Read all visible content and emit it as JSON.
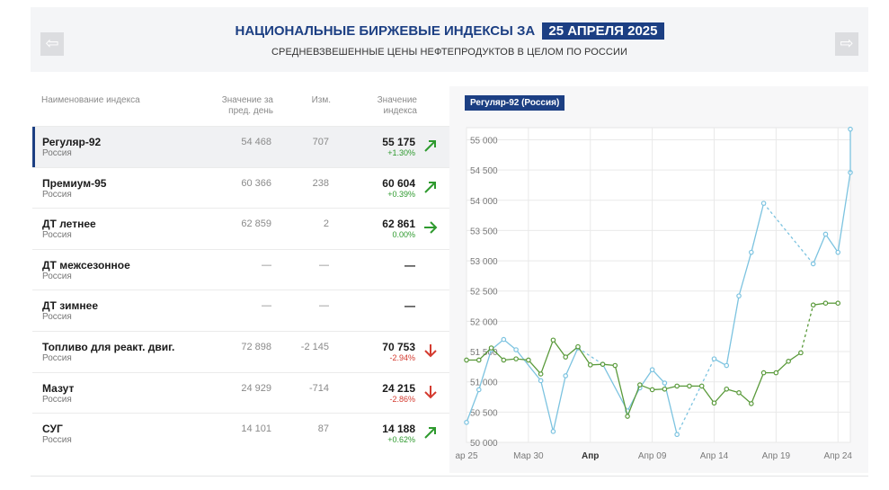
{
  "header": {
    "title": "НАЦИОНАЛЬНЫЕ БИРЖЕВЫЕ ИНДЕКСЫ ЗА",
    "date": "25 АПРЕЛЯ 2025",
    "subtitle": "СРЕДНЕВЗВЕШЕННЫЕ ЦЕНЫ НЕФТЕПРОДУКТОВ В ЦЕЛОМ ПО РОССИИ",
    "prev_icon": "arrow-left-icon",
    "next_icon": "arrow-right-icon",
    "prev_glyph": "⇦",
    "next_glyph": "⇨"
  },
  "table": {
    "headers": {
      "name": "Наименование индекса",
      "prev": "Значение за пред. день",
      "change": "Изм.",
      "value": "Значение индекса"
    },
    "rows": [
      {
        "name": "Регуляр-92",
        "region": "Россия",
        "prev": "54 468",
        "change": "707",
        "value": "55 175",
        "pct": "+1.30%",
        "trend": "up"
      },
      {
        "name": "Премиум-95",
        "region": "Россия",
        "prev": "60 366",
        "change": "238",
        "value": "60 604",
        "pct": "+0.39%",
        "trend": "up"
      },
      {
        "name": "ДТ летнее",
        "region": "Россия",
        "prev": "62 859",
        "change": "2",
        "value": "62 861",
        "pct": "0.00%",
        "trend": "flat"
      },
      {
        "name": "ДТ межсезонное",
        "region": "Россия",
        "prev": "—",
        "change": "—",
        "value": "—",
        "pct": "",
        "trend": "none"
      },
      {
        "name": "ДТ зимнее",
        "region": "Россия",
        "prev": "—",
        "change": "—",
        "value": "—",
        "pct": "",
        "trend": "none"
      },
      {
        "name": "Топливо для реакт. двиг.",
        "region": "Россия",
        "prev": "72 898",
        "change": "-2 145",
        "value": "70 753",
        "pct": "-2.94%",
        "trend": "down"
      },
      {
        "name": "Мазут",
        "region": "Россия",
        "prev": "24 929",
        "change": "-714",
        "value": "24 215",
        "pct": "-2.86%",
        "trend": "down"
      },
      {
        "name": "СУГ",
        "region": "Россия",
        "prev": "14 101",
        "change": "87",
        "value": "14 188",
        "pct": "+0.62%",
        "trend": "up"
      }
    ],
    "colors": {
      "accent": "#1c3f83",
      "up": "#2e9a2e",
      "down": "#d43a2f"
    }
  },
  "chart_data": {
    "type": "line",
    "title": "Регуляр-92 (Россия)",
    "xlabel": "",
    "ylabel": "",
    "ylim": [
      50000,
      55200
    ],
    "yticks": [
      "50 000",
      "50 500",
      "51 000",
      "51 500",
      "52 000",
      "52 500",
      "53 000",
      "53 500",
      "54 000",
      "54 500",
      "55 000"
    ],
    "ytick_values": [
      50000,
      50500,
      51000,
      51500,
      52000,
      52500,
      53000,
      53500,
      54000,
      54500,
      55000
    ],
    "xlim": [
      0,
      31
    ],
    "xticks": [
      "ар 25",
      "Мар 30",
      "Апр",
      "Апр 09",
      "Апр 14",
      "Апр 19",
      "Апр 24"
    ],
    "xtick_values": [
      0,
      5,
      10,
      15,
      20,
      25,
      30
    ],
    "xtick_bold": [
      false,
      false,
      true,
      false,
      false,
      false,
      false
    ],
    "grid": true,
    "legend": "none",
    "series": [
      {
        "color": "#7cc3e0",
        "x": [
          0,
          1,
          2,
          3,
          4,
          6,
          7,
          8,
          9,
          11,
          13,
          14,
          15,
          16,
          17,
          20,
          21,
          22,
          23,
          24,
          28,
          29,
          30,
          31
        ],
        "y": [
          50330,
          50870,
          51530,
          51700,
          51530,
          51020,
          50180,
          51100,
          51560,
          51290,
          50520,
          50900,
          51200,
          50980,
          50130,
          51380,
          51270,
          52420,
          53140,
          53950,
          52950,
          53440,
          53140,
          54460
        ],
        "gaps": [
          [
            9,
            11
          ],
          [
            17,
            20
          ],
          [
            24,
            28
          ]
        ]
      },
      {
        "color": "#5a9a3b",
        "x": [
          0,
          1,
          2,
          3,
          4,
          5,
          6,
          7,
          8,
          9,
          10,
          11,
          12,
          13,
          14,
          15,
          16,
          17,
          18,
          19,
          20,
          21,
          22,
          23,
          24,
          25,
          26,
          27,
          28,
          29,
          30
        ],
        "y": [
          51360,
          51360,
          51560,
          51360,
          51380,
          51360,
          51130,
          51690,
          51410,
          51580,
          51280,
          51290,
          51270,
          50430,
          50950,
          50870,
          50880,
          50930,
          50930,
          50930,
          50650,
          50880,
          50820,
          50640,
          51150,
          51150,
          51340,
          51480,
          52270,
          52300,
          52300
        ],
        "gaps": [
          [
            27,
            28
          ]
        ]
      }
    ],
    "extra_point": {
      "x": 31,
      "y": 55175
    }
  }
}
